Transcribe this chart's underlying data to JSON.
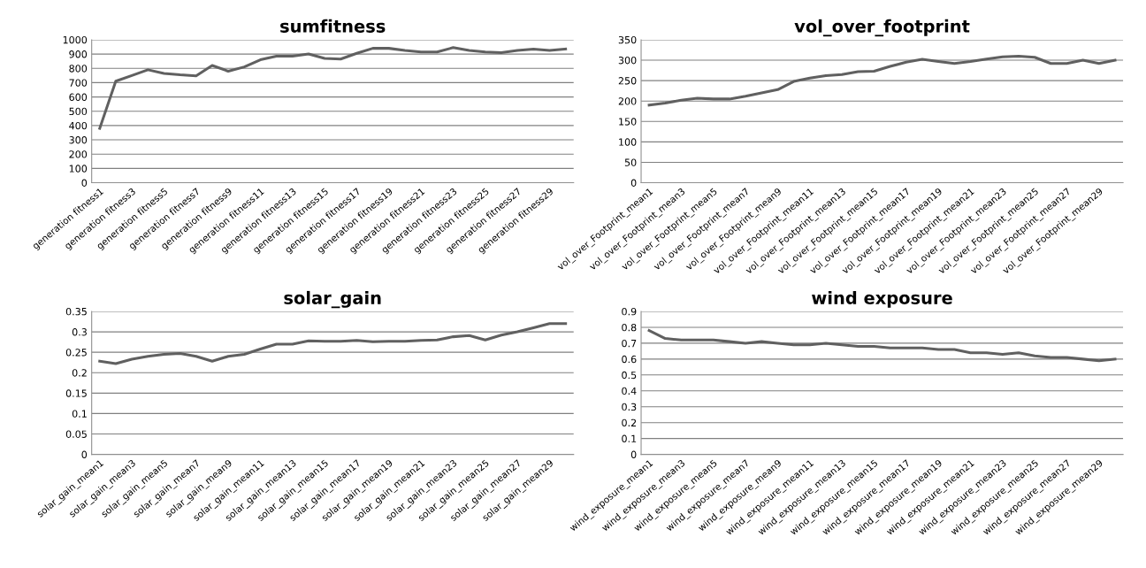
{
  "chart_data": [
    {
      "type": "line",
      "title": "sumfitness",
      "categories": [
        "generation fitness1",
        null,
        "generation fitness3",
        null,
        "generation fitness5",
        null,
        "generation fitness7",
        null,
        "generation fitness9",
        null,
        "generation fitness11",
        null,
        "generation fitness13",
        null,
        "generation fitness15",
        null,
        "generation fitness17",
        null,
        "generation fitness19",
        null,
        "generation fitness21",
        null,
        "generation fitness23",
        null,
        "generation fitness25",
        null,
        "generation fitness27",
        null,
        "generation fitness29",
        null
      ],
      "series": [
        {
          "color": "#606060",
          "values": [
            380,
            710,
            750,
            790,
            765,
            755,
            748,
            820,
            780,
            810,
            860,
            885,
            885,
            900,
            870,
            865,
            905,
            940,
            940,
            925,
            915,
            915,
            945,
            925,
            915,
            910,
            925,
            935,
            925,
            935
          ]
        }
      ],
      "ylim": [
        0,
        1000
      ],
      "yticks": [
        0,
        100,
        200,
        300,
        400,
        500,
        600,
        700,
        800,
        900,
        1000
      ],
      "grid": "y",
      "legend": false
    },
    {
      "type": "line",
      "title": "vol_over_footprint",
      "categories": [
        "vol_over_Footprint_mean1",
        null,
        "vol_over_Footprint_mean3",
        null,
        "vol_over_Footprint_mean5",
        null,
        "vol_over_Footprint_mean7",
        null,
        "vol_over_Footprint_mean9",
        null,
        "vol_over_Footprint_mean11",
        null,
        "vol_over_Footprint_mean13",
        null,
        "vol_over_Footprint_mean15",
        null,
        "vol_over_Footprint_mean17",
        null,
        "vol_over_Footprint_mean19",
        null,
        "vol_over_Footprint_mean21",
        null,
        "vol_over_Footprint_mean23",
        null,
        "vol_over_Footprint_mean25",
        null,
        "vol_over_Footprint_mean27",
        null,
        "vol_over_Footprint_mean29",
        null
      ],
      "series": [
        {
          "color": "#606060",
          "values": [
            190,
            195,
            202,
            207,
            205,
            205,
            212,
            220,
            228,
            248,
            256,
            262,
            265,
            272,
            273,
            285,
            295,
            302,
            297,
            292,
            297,
            303,
            308,
            310,
            307,
            292,
            292,
            300,
            292,
            300
          ]
        }
      ],
      "ylim": [
        0,
        350
      ],
      "yticks": [
        0,
        50,
        100,
        150,
        200,
        250,
        300,
        350
      ],
      "grid": "y",
      "legend": false
    },
    {
      "type": "line",
      "title": "solar_gain",
      "categories": [
        "solar_gain_mean1",
        null,
        "solar_gain_mean3",
        null,
        "solar_gain_mean5",
        null,
        "solar_gain_mean7",
        null,
        "solar_gain_mean9",
        null,
        "solar_gain_mean11",
        null,
        "solar_gain_mean13",
        null,
        "solar_gain_mean15",
        null,
        "solar_gain_mean17",
        null,
        "solar_gain_mean19",
        null,
        "solar_gain_mean21",
        null,
        "solar_gain_mean23",
        null,
        "solar_gain_mean25",
        null,
        "solar_gain_mean27",
        null,
        "solar_gain_mean29",
        null
      ],
      "series": [
        {
          "color": "#606060",
          "values": [
            0.228,
            0.222,
            0.233,
            0.24,
            0.245,
            0.247,
            0.24,
            0.228,
            0.24,
            0.245,
            0.258,
            0.27,
            0.27,
            0.278,
            0.277,
            0.277,
            0.279,
            0.276,
            0.277,
            0.277,
            0.279,
            0.28,
            0.288,
            0.291,
            0.28,
            0.292,
            0.3,
            0.31,
            0.32,
            0.32
          ]
        }
      ],
      "ylim": [
        0,
        0.35
      ],
      "yticks": [
        0,
        0.05,
        0.1,
        0.15,
        0.2,
        0.25,
        0.3,
        0.35
      ],
      "grid": "y",
      "legend": false
    },
    {
      "type": "line",
      "title": "wind exposure",
      "categories": [
        "wind_exposure_mean1",
        null,
        "wind_exposure_mean3",
        null,
        "wind_exposure_mean5",
        null,
        "wind_exposure_mean7",
        null,
        "wind_exposure_mean9",
        null,
        "wind_exposure_mean11",
        null,
        "wind_exposure_mean13",
        null,
        "wind_exposure_mean15",
        null,
        "wind_exposure_mean17",
        null,
        "wind_exposure_mean19",
        null,
        "wind_exposure_mean21",
        null,
        "wind_exposure_mean23",
        null,
        "wind_exposure_mean25",
        null,
        "wind_exposure_mean27",
        null,
        "wind_exposure_mean29",
        null
      ],
      "series": [
        {
          "color": "#606060",
          "values": [
            0.78,
            0.73,
            0.72,
            0.72,
            0.72,
            0.71,
            0.7,
            0.71,
            0.7,
            0.69,
            0.69,
            0.7,
            0.69,
            0.68,
            0.68,
            0.67,
            0.67,
            0.67,
            0.66,
            0.66,
            0.64,
            0.64,
            0.63,
            0.64,
            0.62,
            0.61,
            0.61,
            0.6,
            0.59,
            0.6
          ]
        }
      ],
      "ylim": [
        0,
        0.9
      ],
      "yticks": [
        0,
        0.1,
        0.2,
        0.3,
        0.4,
        0.5,
        0.6,
        0.7,
        0.8,
        0.9
      ],
      "grid": "y",
      "legend": false
    }
  ]
}
